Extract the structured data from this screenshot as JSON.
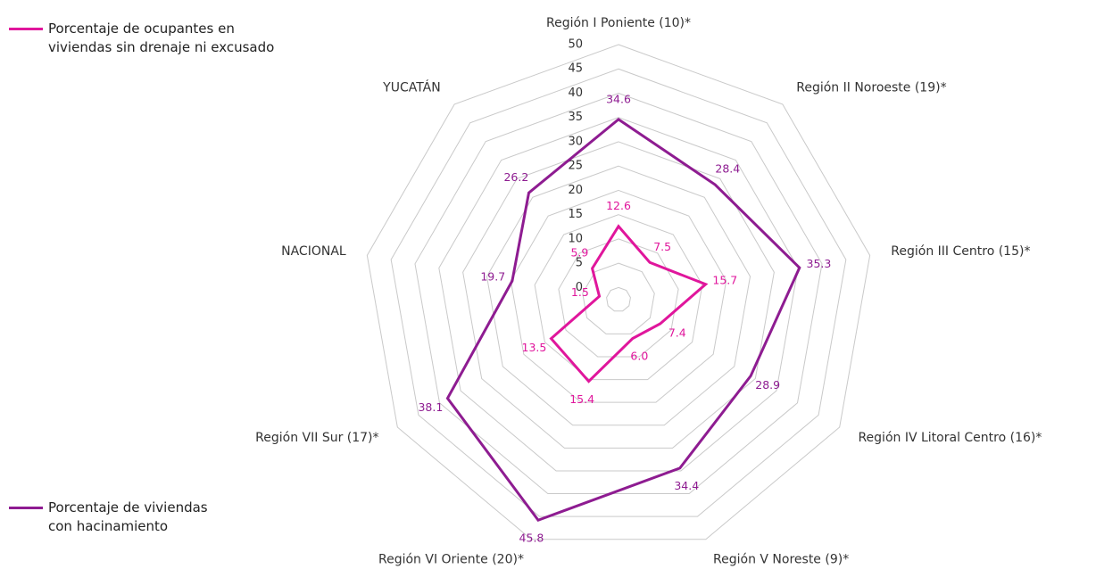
{
  "chart_data": {
    "type": "radar",
    "categories": [
      "Región I Poniente (10)*",
      "Región II Noroeste (19)*",
      "Región III Centro (15)*",
      "Región IV Litoral Centro (16)*",
      "Región V Noreste (9)*",
      "Región VI Oriente (20)*",
      "Región VII Sur (17)*",
      "NACIONAL",
      "YUCATÁN"
    ],
    "series": [
      {
        "name": "Porcentaje de ocupantes en viviendas sin drenaje ni excusado",
        "color": "#e0169c",
        "values": [
          12.6,
          7.5,
          15.7,
          7.4,
          6.0,
          15.4,
          13.5,
          1.5,
          5.9
        ],
        "value_labels": [
          "12.6",
          "7.5",
          "15.7",
          "7.4",
          "6.0",
          "15.4",
          "13.5",
          "1.5",
          "5.9"
        ]
      },
      {
        "name": "Porcentaje de viviendas con hacinamiento",
        "color": "#8e1c91",
        "values": [
          34.6,
          28.4,
          35.3,
          28.9,
          34.4,
          45.8,
          38.1,
          19.7,
          26.2
        ],
        "value_labels": [
          "34.6",
          "28.4",
          "35.3",
          "28.9",
          "34.4",
          "45.8",
          "38.1",
          "19.7",
          "26.2"
        ]
      }
    ],
    "ylim": [
      -2.5,
      50
    ],
    "yticks": [
      0,
      5,
      10,
      15,
      20,
      25,
      30,
      35,
      40,
      45,
      50
    ],
    "grid": true
  }
}
